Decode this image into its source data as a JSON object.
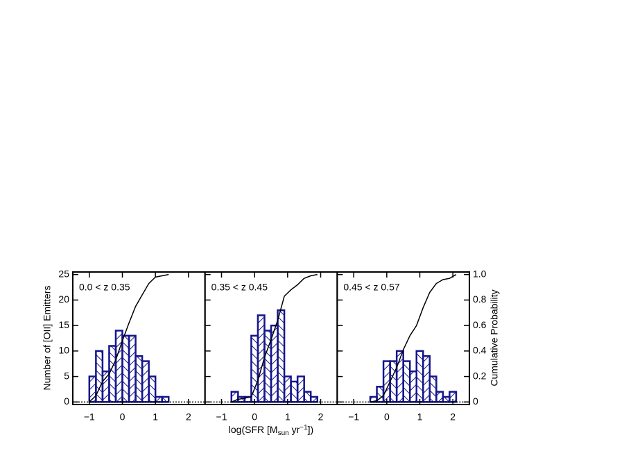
{
  "chart_data": [
    {
      "type": "histogram",
      "label": "0.0 < z 0.35",
      "color": "#14148c",
      "bins": [
        -1.0,
        -0.8,
        -0.6,
        -0.4,
        -0.2,
        0.0,
        0.2,
        0.4,
        0.6,
        0.8,
        1.0,
        1.2,
        1.4
      ],
      "values": [
        5,
        10,
        6,
        11,
        14,
        13,
        13,
        9,
        8,
        5,
        1,
        1
      ],
      "cumulative": {
        "color": "#000000",
        "x": [
          -1.0,
          -0.8,
          -0.6,
          -0.4,
          -0.2,
          0.0,
          0.2,
          0.4,
          0.6,
          0.8,
          1.0,
          1.2,
          1.4
        ],
        "values": [
          0,
          0.05,
          0.16,
          0.22,
          0.33,
          0.48,
          0.62,
          0.75,
          0.84,
          0.93,
          0.98,
          0.99,
          1.0
        ]
      },
      "xlim": [
        -1.5,
        2.5
      ],
      "ylim": [
        -0.5,
        25.5
      ],
      "y2lim": [
        -0.02,
        1.02
      ],
      "xticks": [
        {
          "value": -1,
          "label": "−1"
        },
        0,
        1,
        2
      ],
      "yticks": [
        0,
        5,
        10,
        15,
        20,
        25
      ],
      "ylabel": "Number of [OII] Emitters"
    },
    {
      "type": "histogram",
      "label": "0.35 < z 0.45",
      "color": "#14148c",
      "bins": [
        -0.7,
        -0.5,
        -0.3,
        -0.1,
        0.1,
        0.3,
        0.5,
        0.7,
        0.9,
        1.1,
        1.3,
        1.5,
        1.7,
        1.9
      ],
      "values": [
        2,
        1,
        1,
        13,
        17,
        14,
        15,
        18,
        5,
        4,
        5,
        2,
        1
      ],
      "cumulative": {
        "color": "#000000",
        "x": [
          -0.7,
          -0.5,
          -0.3,
          -0.1,
          0.1,
          0.3,
          0.5,
          0.7,
          0.9,
          1.1,
          1.3,
          1.5,
          1.7,
          1.9
        ],
        "values": [
          0,
          0.02,
          0.03,
          0.04,
          0.17,
          0.35,
          0.49,
          0.64,
          0.83,
          0.88,
          0.92,
          0.97,
          0.99,
          1.0
        ]
      },
      "xlim": [
        -1.5,
        2.5
      ],
      "ylim": [
        -0.5,
        25.5
      ],
      "y2lim": [
        -0.02,
        1.02
      ],
      "xticks": [
        {
          "value": -1,
          "label": "−1"
        },
        0,
        1,
        2
      ],
      "xlabel": [
        "log(SFR [M",
        "sun",
        " yr",
        "−1",
        "])"
      ]
    },
    {
      "type": "histogram",
      "label": "0.45 < z 0.57",
      "color": "#14148c",
      "bins": [
        -0.5,
        -0.3,
        -0.1,
        0.1,
        0.3,
        0.5,
        0.7,
        0.9,
        1.1,
        1.3,
        1.5,
        1.7,
        1.9,
        2.1
      ],
      "values": [
        1,
        3,
        8,
        8,
        10,
        8,
        6,
        10,
        9,
        5,
        2,
        1,
        2
      ],
      "cumulative": {
        "color": "#000000",
        "x": [
          -0.5,
          -0.3,
          -0.1,
          0.1,
          0.3,
          0.5,
          0.7,
          0.9,
          1.1,
          1.3,
          1.5,
          1.7,
          1.9,
          2.1
        ],
        "values": [
          0,
          0.01,
          0.05,
          0.16,
          0.27,
          0.41,
          0.52,
          0.6,
          0.74,
          0.86,
          0.93,
          0.96,
          0.97,
          1.0
        ]
      },
      "xlim": [
        -1.5,
        2.5
      ],
      "ylim": [
        -0.5,
        25.5
      ],
      "y2lim": [
        -0.02,
        1.02
      ],
      "xticks": [
        {
          "value": -1,
          "label": "−1"
        },
        0,
        1,
        2
      ],
      "y2ticks": [
        0,
        0.2,
        0.4,
        0.6,
        0.8,
        {
          "value": 1,
          "label": "1.0"
        }
      ],
      "y2label": "Cumulative Probability"
    }
  ]
}
